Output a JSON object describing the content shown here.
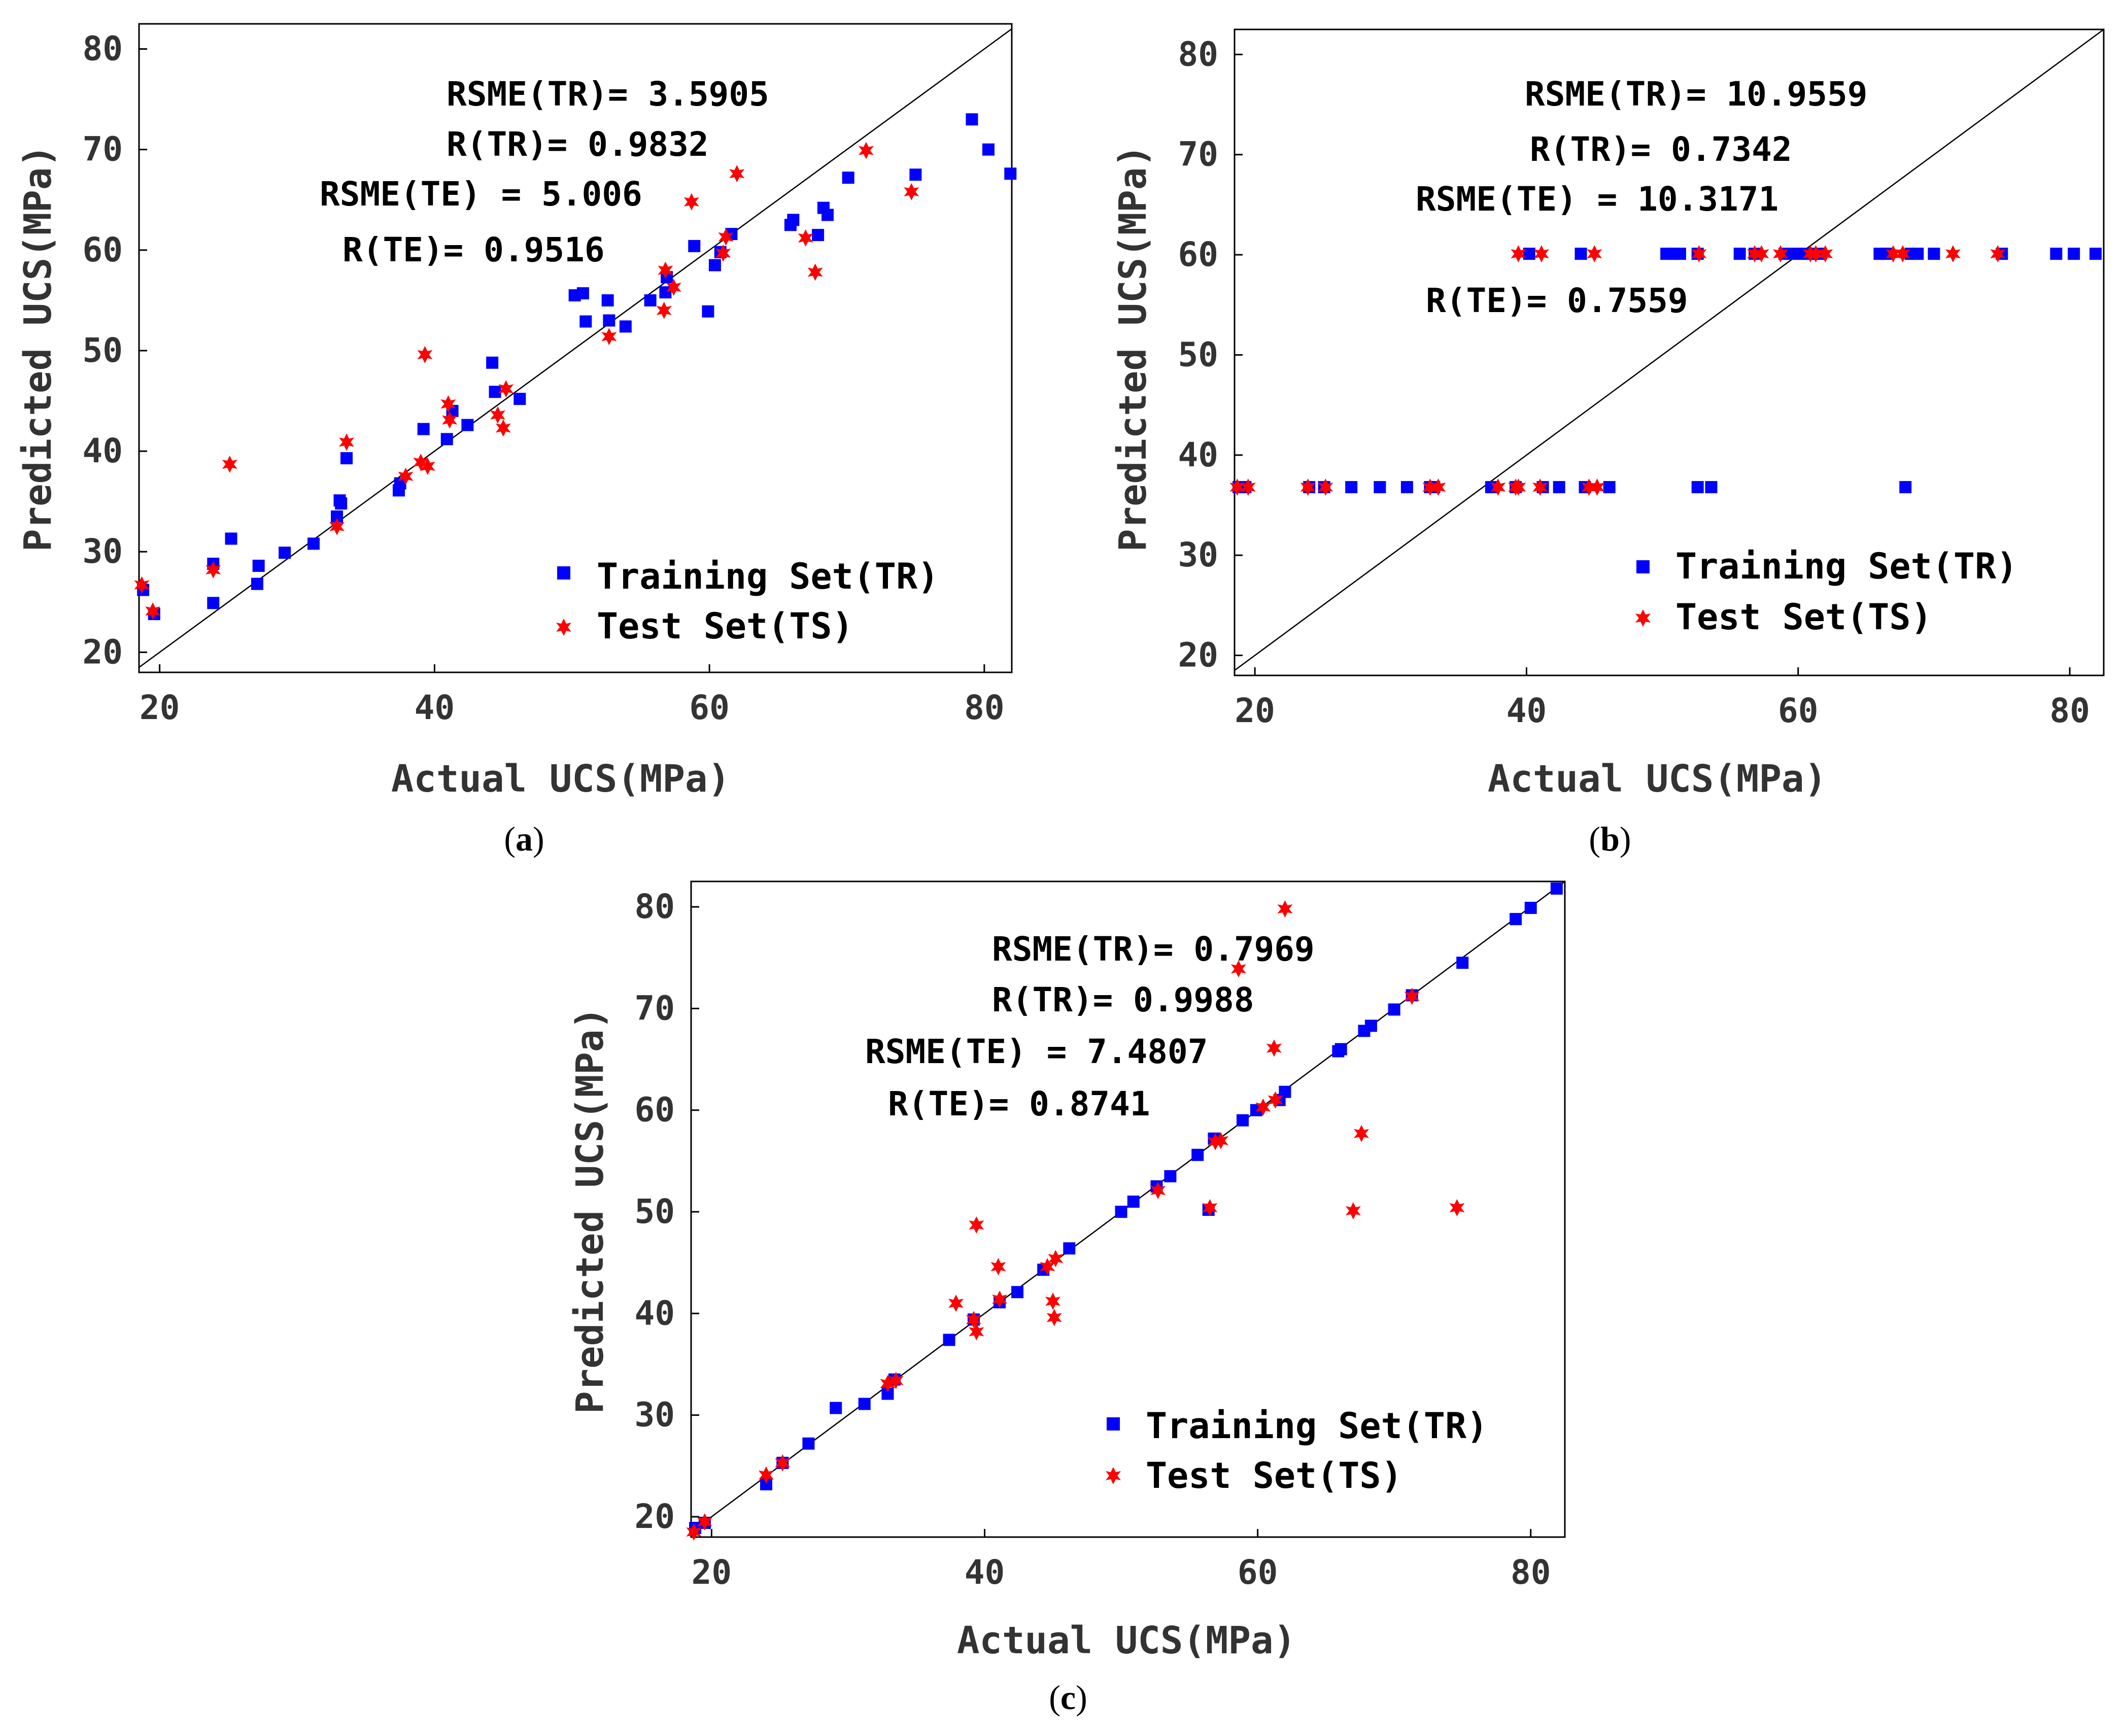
{
  "colors": {
    "training": "#0000ff",
    "test": "#ff0000",
    "axis_text": "#333333"
  },
  "legend": {
    "training_label": "Training Set(TR)",
    "test_label": "Test Set(TS)"
  },
  "chart_data": [
    {
      "type": "scatter",
      "panel_label": "a",
      "xlabel": "Actual UCS(MPa)",
      "ylabel": "Predicted UCS(MPa)",
      "xlim": [
        18.5,
        82
      ],
      "ylim": [
        18,
        82.5
      ],
      "xticks": [
        20,
        40,
        60,
        80
      ],
      "yticks": [
        20,
        30,
        40,
        50,
        60,
        70,
        80
      ],
      "legend_position": "bottom-right",
      "reference_line": "y = x",
      "annotations": [
        "RSME(TR)= 3.5905",
        "R(TR)= 0.9832",
        "RSME(TE) = 5.006",
        "R(TE)= 0.9516"
      ],
      "series": [
        {
          "name": "Training Set(TR)",
          "marker": "square",
          "x": [
            18.8,
            19.6,
            23.9,
            23.9,
            25.2,
            27.1,
            27.2,
            29.1,
            31.2,
            32.9,
            33.1,
            33.2,
            33.6,
            37.4,
            37.5,
            39.2,
            40.9,
            41.3,
            42.4,
            44.2,
            44.4,
            46.2,
            50.2,
            50.8,
            51.0,
            52.6,
            52.7,
            53.9,
            55.7,
            56.8,
            56.9,
            58.9,
            59.9,
            60.4,
            60.8,
            61.6,
            65.9,
            66.1,
            67.9,
            68.3,
            68.6,
            70.1,
            75.0,
            79.1,
            80.3,
            81.9
          ],
          "y": [
            26.2,
            23.8,
            24.9,
            28.8,
            31.3,
            26.8,
            28.6,
            29.9,
            30.8,
            33.5,
            35.1,
            34.8,
            39.3,
            36.1,
            36.8,
            42.2,
            41.2,
            44.0,
            42.6,
            48.8,
            45.9,
            45.2,
            55.5,
            55.7,
            52.9,
            55.0,
            53.0,
            52.4,
            55.0,
            55.8,
            57.3,
            60.4,
            53.9,
            58.5,
            59.8,
            61.6,
            62.5,
            63.0,
            61.5,
            64.2,
            63.5,
            67.2,
            67.5,
            73.0,
            70.0,
            67.6
          ]
        },
        {
          "name": "Test Set(TS)",
          "marker": "star",
          "x": [
            18.7,
            19.5,
            23.9,
            25.1,
            32.9,
            33.6,
            37.9,
            39.0,
            39.3,
            39.5,
            41.0,
            41.1,
            44.6,
            45.2,
            45.0,
            52.7,
            56.7,
            56.8,
            57.4,
            58.7,
            61.0,
            61.2,
            62.0,
            67.0,
            67.7,
            71.4,
            74.7
          ],
          "y": [
            26.7,
            24.1,
            28.2,
            38.7,
            32.5,
            40.9,
            37.5,
            38.9,
            49.6,
            38.5,
            44.7,
            43.1,
            43.6,
            46.2,
            42.3,
            51.4,
            54.0,
            58.0,
            56.3,
            64.8,
            59.7,
            61.3,
            67.6,
            61.2,
            57.8,
            69.9,
            65.8
          ]
        }
      ]
    },
    {
      "type": "scatter",
      "panel_label": "b",
      "xlabel": "Actual UCS(MPa)",
      "ylabel": "Predicted UCS(MPa)",
      "xlim": [
        18.5,
        82.5
      ],
      "ylim": [
        18,
        82.5
      ],
      "xticks": [
        20,
        40,
        60,
        80
      ],
      "yticks": [
        20,
        30,
        40,
        50,
        60,
        70,
        80
      ],
      "legend_position": "bottom-right",
      "reference_line": "y = x",
      "annotations": [
        "RSME(TR)= 10.9559",
        "R(TR)= 0.7342",
        "RSME(TE) = 10.3171",
        "R(TE)= 0.7559"
      ],
      "series": [
        {
          "name": "Training Set(TR)",
          "marker": "square",
          "x": [
            18.8,
            19.3,
            24.0,
            25.1,
            27.1,
            29.2,
            31.2,
            32.9,
            33.2,
            37.4,
            39.2,
            41.2,
            42.4,
            44.3,
            46.1,
            52.6,
            53.6,
            67.9,
            40.2,
            44.0,
            50.3,
            50.8,
            51.3,
            52.6,
            55.7,
            56.8,
            59.0,
            59.9,
            60.5,
            61.0,
            61.6,
            66.0,
            66.5,
            68.3,
            68.8,
            70.0,
            75.0,
            79.0,
            80.3,
            81.9
          ],
          "y": [
            36.8,
            36.8,
            36.8,
            36.8,
            36.8,
            36.8,
            36.8,
            36.8,
            36.8,
            36.8,
            36.8,
            36.8,
            36.8,
            36.8,
            36.8,
            36.8,
            36.8,
            36.8,
            60.1,
            60.1,
            60.1,
            60.1,
            60.1,
            60.1,
            60.1,
            60.1,
            60.1,
            60.1,
            60.1,
            60.1,
            60.1,
            60.1,
            60.1,
            60.1,
            60.1,
            60.1,
            60.1,
            60.1,
            60.1,
            60.1
          ]
        },
        {
          "name": "Test Set(TS)",
          "marker": "star",
          "x": [
            18.7,
            19.5,
            23.9,
            25.2,
            32.9,
            33.5,
            37.9,
            39.2,
            39.4,
            41.0,
            44.6,
            45.2,
            39.4,
            41.1,
            45.0,
            52.7,
            56.8,
            57.3,
            58.7,
            60.9,
            61.3,
            62.0,
            67.0,
            67.7,
            71.4,
            74.7
          ],
          "y": [
            36.8,
            36.8,
            36.8,
            36.8,
            36.8,
            36.8,
            36.8,
            36.8,
            36.8,
            36.8,
            36.8,
            36.8,
            60.1,
            60.1,
            60.1,
            60.1,
            60.1,
            60.1,
            60.1,
            60.1,
            60.1,
            60.1,
            60.1,
            60.1,
            60.1,
            60.1
          ]
        }
      ]
    },
    {
      "type": "scatter",
      "panel_label": "c",
      "xlabel": "Actual UCS(MPa)",
      "ylabel": "Predicted UCS(MPa)",
      "xlim": [
        18.5,
        82.5
      ],
      "ylim": [
        18,
        82.5
      ],
      "xticks": [
        20,
        40,
        60,
        80
      ],
      "yticks": [
        20,
        30,
        40,
        50,
        60,
        70,
        80
      ],
      "legend_position": "bottom-right",
      "reference_line": "y = x",
      "annotations": [
        "RSME(TR)= 0.7969",
        "R(TR)= 0.9988",
        "RSME(TE) = 7.4807",
        "R(TE)= 0.8741"
      ],
      "series": [
        {
          "name": "Training Set(TR)",
          "marker": "square",
          "x": [
            18.8,
            19.5,
            24.0,
            25.2,
            27.1,
            29.1,
            31.2,
            32.9,
            33.4,
            37.4,
            39.2,
            41.1,
            42.4,
            44.3,
            46.2,
            50.0,
            50.9,
            52.6,
            53.6,
            55.6,
            56.4,
            56.8,
            58.9,
            59.9,
            61.6,
            62.0,
            65.9,
            66.1,
            67.8,
            68.3,
            70.0,
            71.3,
            75.0,
            78.9,
            80.0,
            81.9
          ],
          "y": [
            18.9,
            19.4,
            23.2,
            25.3,
            27.2,
            30.7,
            31.1,
            32.1,
            33.5,
            37.4,
            39.4,
            41.1,
            42.1,
            44.3,
            46.4,
            50.0,
            51.0,
            52.5,
            53.5,
            55.6,
            50.2,
            57.2,
            59.0,
            60.0,
            61.0,
            61.8,
            65.8,
            66.0,
            67.8,
            68.3,
            69.9,
            71.3,
            74.5,
            78.8,
            79.9,
            81.8
          ]
        },
        {
          "name": "Test Set(TS)",
          "marker": "star",
          "x": [
            18.7,
            19.5,
            24.0,
            25.2,
            32.9,
            33.5,
            37.9,
            39.2,
            39.4,
            39.4,
            41.0,
            41.1,
            44.6,
            45.1,
            45.2,
            45.0,
            52.7,
            56.5,
            56.9,
            57.3,
            58.6,
            60.4,
            61.2,
            61.3,
            62.0,
            67.0,
            67.6,
            71.3,
            74.6
          ],
          "y": [
            18.5,
            19.5,
            24.1,
            25.3,
            33.1,
            33.4,
            41.0,
            39.4,
            38.2,
            48.7,
            44.6,
            41.4,
            44.6,
            39.6,
            45.4,
            41.2,
            52.1,
            50.4,
            56.9,
            57.0,
            73.9,
            60.3,
            66.1,
            61.0,
            79.8,
            50.1,
            57.7,
            71.2,
            50.4
          ]
        }
      ]
    }
  ]
}
